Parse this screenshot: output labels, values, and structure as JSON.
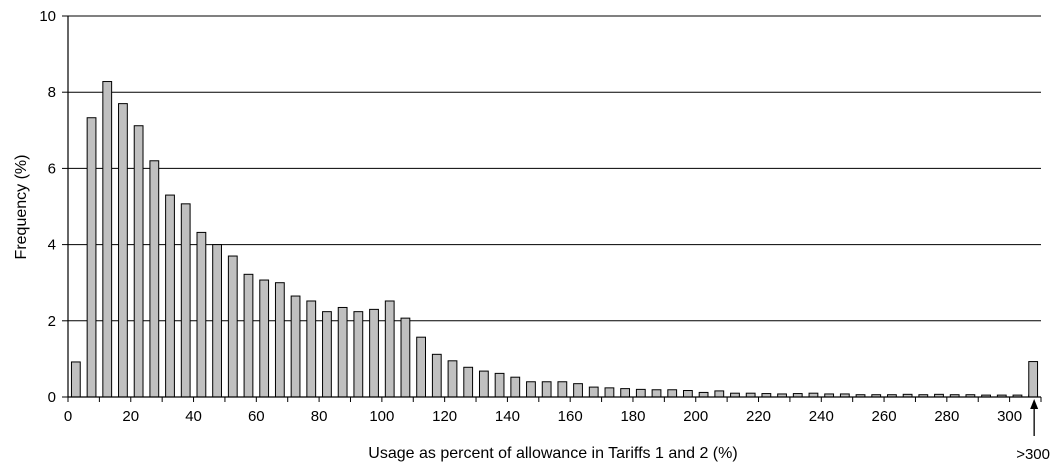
{
  "chart_data": {
    "type": "bar",
    "xlabel": "Usage as percent of allowance in Tariffs 1 and 2 (%)",
    "ylabel": "Frequency (%)",
    "ylim": [
      0,
      10
    ],
    "yticks": [
      0,
      2,
      4,
      6,
      8,
      10
    ],
    "xlim": [
      0,
      310
    ],
    "xticks": [
      0,
      20,
      40,
      60,
      80,
      100,
      120,
      140,
      160,
      180,
      200,
      220,
      240,
      260,
      280,
      300
    ],
    "grid": "horizontal",
    "bin_width": 5,
    "bar_color": "#c0c0c0",
    "values": [
      0.92,
      7.33,
      8.28,
      7.7,
      7.12,
      6.2,
      5.3,
      5.07,
      4.32,
      4.0,
      3.7,
      3.22,
      3.07,
      3.0,
      2.65,
      2.52,
      2.24,
      2.35,
      2.24,
      2.3,
      2.52,
      2.07,
      1.57,
      1.12,
      0.95,
      0.78,
      0.68,
      0.62,
      0.52,
      0.4,
      0.4,
      0.4,
      0.35,
      0.26,
      0.24,
      0.22,
      0.2,
      0.19,
      0.19,
      0.17,
      0.12,
      0.16,
      0.1,
      0.1,
      0.09,
      0.08,
      0.09,
      0.1,
      0.08,
      0.08,
      0.06,
      0.06,
      0.06,
      0.07,
      0.06,
      0.07,
      0.06,
      0.06,
      0.05,
      0.05,
      0.05,
      0.05
    ],
    "overflow_bar": {
      "label": ">300",
      "value": 0.93
    }
  }
}
